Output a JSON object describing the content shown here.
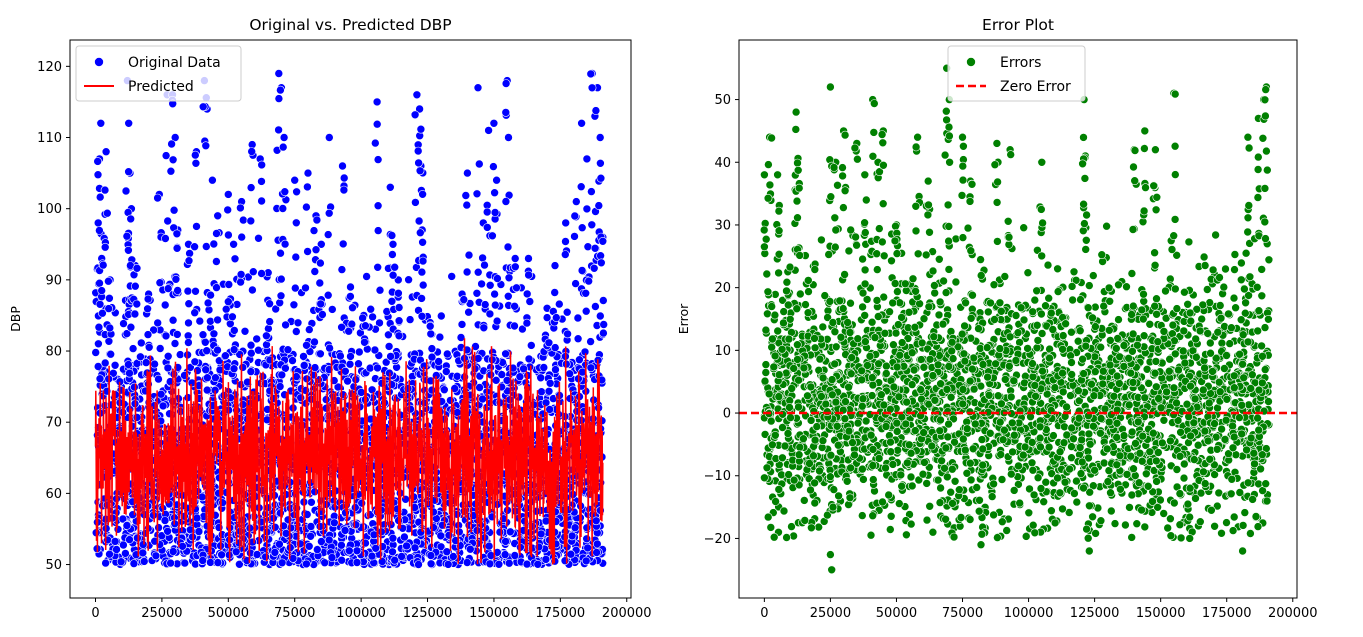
{
  "chart_data": [
    {
      "type": "scatter",
      "title": "Original vs. Predicted DBP",
      "xlabel": "",
      "ylabel": "DBP",
      "xlim": [
        -9600,
        201600
      ],
      "ylim": [
        45.3,
        123.7
      ],
      "xticks": [
        0,
        25000,
        50000,
        75000,
        100000,
        125000,
        150000,
        175000,
        200000
      ],
      "xtick_labels": [
        "0",
        "25000",
        "50000",
        "75000",
        "100000",
        "125000",
        "150000",
        "175000",
        "200000"
      ],
      "yticks": [
        50,
        60,
        70,
        80,
        90,
        100,
        110,
        120
      ],
      "ytick_labels": [
        "50",
        "60",
        "70",
        "80",
        "90",
        "100",
        "110",
        "120"
      ],
      "legend_position": "top-left",
      "grid": false,
      "series": [
        {
          "name": "Original Data",
          "kind": "scatter",
          "color": "#0000ff",
          "count": 191000,
          "x_range": [
            0,
            191000
          ],
          "core_range": [
            50,
            80
          ],
          "outliers": [
            {
              "x": 1000,
              "y": 98
            },
            {
              "x": 1500,
              "y": 107
            },
            {
              "x": 2000,
              "y": 112
            },
            {
              "x": 3000,
              "y": 96
            },
            {
              "x": 4000,
              "y": 108
            },
            {
              "x": 5500,
              "y": 90
            },
            {
              "x": 12000,
              "y": 118
            },
            {
              "x": 12500,
              "y": 112
            },
            {
              "x": 13000,
              "y": 105
            },
            {
              "x": 13500,
              "y": 100
            },
            {
              "x": 15000,
              "y": 92
            },
            {
              "x": 20000,
              "y": 88
            },
            {
              "x": 24000,
              "y": 102
            },
            {
              "x": 27000,
              "y": 116
            },
            {
              "x": 29000,
              "y": 116
            },
            {
              "x": 30000,
              "y": 110
            },
            {
              "x": 31000,
              "y": 97
            },
            {
              "x": 35000,
              "y": 95
            },
            {
              "x": 38000,
              "y": 108
            },
            {
              "x": 41000,
              "y": 118
            },
            {
              "x": 42000,
              "y": 114
            },
            {
              "x": 44000,
              "y": 104
            },
            {
              "x": 46000,
              "y": 99
            },
            {
              "x": 50000,
              "y": 102
            },
            {
              "x": 52000,
              "y": 95
            },
            {
              "x": 55000,
              "y": 101
            },
            {
              "x": 59000,
              "y": 109
            },
            {
              "x": 62000,
              "y": 107
            },
            {
              "x": 65000,
              "y": 91
            },
            {
              "x": 69000,
              "y": 119
            },
            {
              "x": 70000,
              "y": 117
            },
            {
              "x": 71000,
              "y": 110
            },
            {
              "x": 75000,
              "y": 104
            },
            {
              "x": 80000,
              "y": 105
            },
            {
              "x": 83000,
              "y": 99
            },
            {
              "x": 85000,
              "y": 95
            },
            {
              "x": 88000,
              "y": 110
            },
            {
              "x": 93000,
              "y": 106
            },
            {
              "x": 96000,
              "y": 89
            },
            {
              "x": 101000,
              "y": 85
            },
            {
              "x": 106000,
              "y": 115
            },
            {
              "x": 111000,
              "y": 103
            },
            {
              "x": 112000,
              "y": 95
            },
            {
              "x": 114000,
              "y": 90
            },
            {
              "x": 121000,
              "y": 116
            },
            {
              "x": 122000,
              "y": 114
            },
            {
              "x": 122500,
              "y": 106
            },
            {
              "x": 123000,
              "y": 97
            },
            {
              "x": 126000,
              "y": 84
            },
            {
              "x": 138000,
              "y": 88
            },
            {
              "x": 140000,
              "y": 105
            },
            {
              "x": 144000,
              "y": 117
            },
            {
              "x": 146000,
              "y": 98
            },
            {
              "x": 148000,
              "y": 111
            },
            {
              "x": 150000,
              "y": 112
            },
            {
              "x": 151000,
              "y": 104
            },
            {
              "x": 155000,
              "y": 118
            },
            {
              "x": 155500,
              "y": 110
            },
            {
              "x": 158000,
              "y": 93
            },
            {
              "x": 163000,
              "y": 93
            },
            {
              "x": 170000,
              "y": 86
            },
            {
              "x": 173000,
              "y": 92
            },
            {
              "x": 177000,
              "y": 98
            },
            {
              "x": 181000,
              "y": 101
            },
            {
              "x": 183000,
              "y": 112
            },
            {
              "x": 185000,
              "y": 107
            },
            {
              "x": 187000,
              "y": 119
            },
            {
              "x": 188000,
              "y": 113
            },
            {
              "x": 189000,
              "y": 117
            },
            {
              "x": 190000,
              "y": 110
            },
            {
              "x": 191000,
              "y": 96
            }
          ]
        },
        {
          "name": "Predicted",
          "kind": "line",
          "color": "#ff0000",
          "range": [
            50,
            82
          ]
        }
      ]
    },
    {
      "type": "scatter",
      "title": "Error Plot",
      "xlabel": "",
      "ylabel": "Error",
      "xlim": [
        -9600,
        201600
      ],
      "ylim": [
        -29.5,
        59.5
      ],
      "xticks": [
        0,
        25000,
        50000,
        75000,
        100000,
        125000,
        150000,
        175000,
        200000
      ],
      "xtick_labels": [
        "0",
        "25000",
        "50000",
        "75000",
        "100000",
        "125000",
        "150000",
        "175000",
        "200000"
      ],
      "yticks": [
        -20,
        -10,
        0,
        10,
        20,
        30,
        40,
        50
      ],
      "ytick_labels": [
        "−20",
        "−10",
        "0",
        "10",
        "20",
        "30",
        "40",
        "50"
      ],
      "legend_position": "top-center",
      "grid": false,
      "series": [
        {
          "name": "Errors",
          "kind": "scatter",
          "color": "#008000",
          "count": 191000,
          "x_range": [
            0,
            191000
          ],
          "core_range": [
            -20,
            25
          ],
          "outliers": [
            {
              "x": 0,
              "y": 38
            },
            {
              "x": 2000,
              "y": 44
            },
            {
              "x": 5000,
              "y": 38
            },
            {
              "x": 12000,
              "y": 48
            },
            {
              "x": 12500,
              "y": 40
            },
            {
              "x": 13000,
              "y": 36
            },
            {
              "x": 25000,
              "y": 52
            },
            {
              "x": 27000,
              "y": 40
            },
            {
              "x": 30000,
              "y": 45
            },
            {
              "x": 35000,
              "y": 43
            },
            {
              "x": 38000,
              "y": 38
            },
            {
              "x": 41000,
              "y": 50
            },
            {
              "x": 43000,
              "y": 40
            },
            {
              "x": 45000,
              "y": 45
            },
            {
              "x": 50000,
              "y": 30
            },
            {
              "x": 58000,
              "y": 44
            },
            {
              "x": 62000,
              "y": 37
            },
            {
              "x": 69000,
              "y": 55
            },
            {
              "x": 70000,
              "y": 50
            },
            {
              "x": 75000,
              "y": 44
            },
            {
              "x": 78000,
              "y": 37
            },
            {
              "x": 88000,
              "y": 43
            },
            {
              "x": 93000,
              "y": 42
            },
            {
              "x": 105000,
              "y": 40
            },
            {
              "x": 121000,
              "y": 50
            },
            {
              "x": 121500,
              "y": 41
            },
            {
              "x": 140000,
              "y": 42
            },
            {
              "x": 144000,
              "y": 45
            },
            {
              "x": 148000,
              "y": 42
            },
            {
              "x": 155000,
              "y": 51
            },
            {
              "x": 183000,
              "y": 44
            },
            {
              "x": 187000,
              "y": 47
            },
            {
              "x": 189000,
              "y": 50
            },
            {
              "x": 190000,
              "y": 52
            },
            {
              "x": 25500,
              "y": -25
            },
            {
              "x": 82000,
              "y": -21
            },
            {
              "x": 123000,
              "y": -22
            },
            {
              "x": 161000,
              "y": -20
            },
            {
              "x": 181000,
              "y": -22
            }
          ]
        },
        {
          "name": "Zero Error",
          "kind": "hline",
          "color": "#ff0000",
          "style": "dashed",
          "y": 0
        }
      ]
    }
  ]
}
